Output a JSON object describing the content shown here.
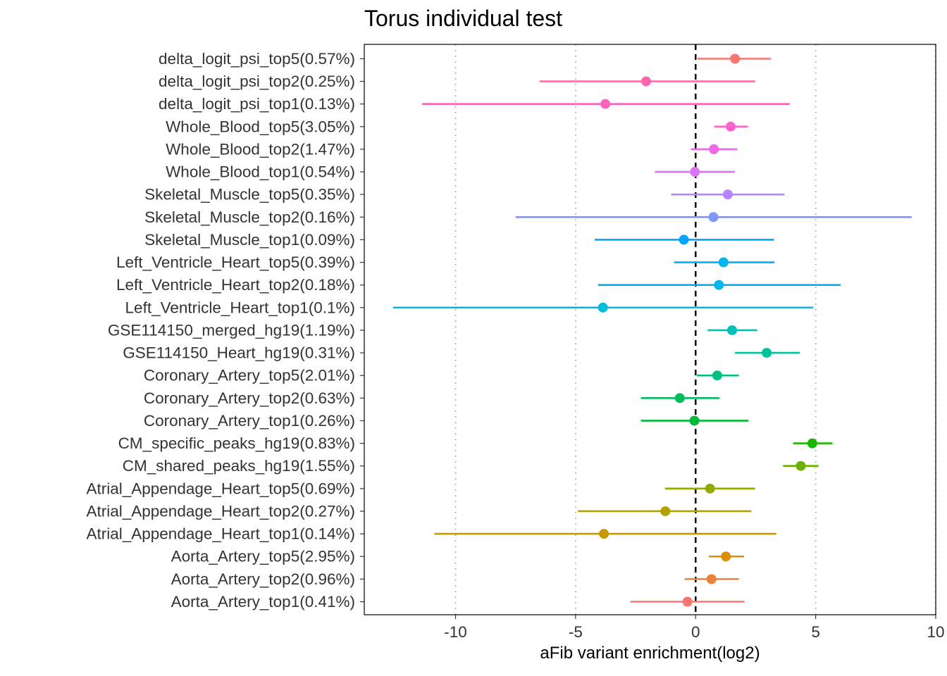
{
  "chart_data": {
    "type": "forest",
    "title": "Torus individual test",
    "xlabel": "aFib variant enrichment(log2)",
    "ylabel": "",
    "xlim": [
      -13.8,
      10
    ],
    "xticks": [
      -10,
      -5,
      0,
      5,
      10
    ],
    "xtick_labels": [
      "-10",
      "-5",
      "0",
      "5",
      "10"
    ],
    "reference_line": 0,
    "categories": [
      "Aorta_Artery_top1(0.41%)",
      "Aorta_Artery_top2(0.96%)",
      "Aorta_Artery_top5(2.95%)",
      "Atrial_Appendage_Heart_top1(0.14%)",
      "Atrial_Appendage_Heart_top2(0.27%)",
      "Atrial_Appendage_Heart_top5(0.69%)",
      "CM_shared_peaks_hg19(1.55%)",
      "CM_specific_peaks_hg19(0.83%)",
      "Coronary_Artery_top1(0.26%)",
      "Coronary_Artery_top2(0.63%)",
      "Coronary_Artery_top5(2.01%)",
      "GSE114150_Heart_hg19(0.31%)",
      "GSE114150_merged_hg19(1.19%)",
      "Left_Ventricle_Heart_top1(0.1%)",
      "Left_Ventricle_Heart_top2(0.18%)",
      "Left_Ventricle_Heart_top5(0.39%)",
      "Skeletal_Muscle_top1(0.09%)",
      "Skeletal_Muscle_top2(0.16%)",
      "Skeletal_Muscle_top5(0.35%)",
      "Whole_Blood_top1(0.54%)",
      "Whole_Blood_top2(1.47%)",
      "Whole_Blood_top5(3.05%)",
      "delta_logit_psi_top1(0.13%)",
      "delta_logit_psi_top2(0.25%)",
      "delta_logit_psi_top5(0.57%)"
    ],
    "estimates": [
      -0.34,
      0.66,
      1.26,
      -3.82,
      -1.26,
      0.6,
      4.38,
      4.86,
      -0.05,
      -0.66,
      0.9,
      2.96,
      1.52,
      -3.86,
      0.97,
      1.16,
      -0.49,
      0.74,
      1.34,
      -0.03,
      0.76,
      1.46,
      -3.76,
      -2.06,
      1.64
    ],
    "ci_lower": [
      -2.72,
      -0.46,
      0.55,
      -10.88,
      -4.9,
      -1.28,
      3.64,
      4.06,
      -2.28,
      -2.28,
      0.05,
      1.64,
      0.5,
      -12.6,
      -4.06,
      -0.9,
      -4.2,
      -7.5,
      -1.02,
      -1.7,
      -0.2,
      0.78,
      -11.4,
      -6.5,
      0.08
    ],
    "ci_upper": [
      2.04,
      1.8,
      2.02,
      3.36,
      2.32,
      2.48,
      5.12,
      5.7,
      2.2,
      1.0,
      1.8,
      4.34,
      2.56,
      4.9,
      6.04,
      3.28,
      3.26,
      9.0,
      3.7,
      1.64,
      1.74,
      2.18,
      3.92,
      2.48,
      3.14
    ],
    "colors": [
      "#F8766D",
      "#EC8239",
      "#DB8E00",
      "#C79800",
      "#AFA100",
      "#93AA00",
      "#6BB100",
      "#19B700",
      "#00BA38",
      "#00BC59",
      "#00BF7D",
      "#00C19C",
      "#00C0B8",
      "#00BCD8",
      "#00B4EF",
      "#00B4EF",
      "#00A5FF",
      "#7F96FF",
      "#B385FF",
      "#D874FD",
      "#EF67EB",
      "#FD61D1",
      "#FF62BC",
      "#FF65AE",
      "#F8766D"
    ],
    "grid_x": true,
    "legend": "none"
  }
}
